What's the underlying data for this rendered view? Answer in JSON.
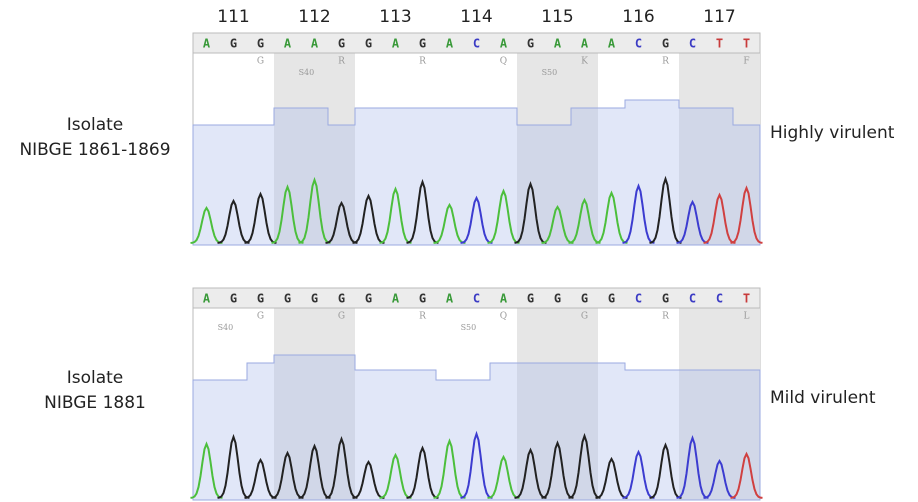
{
  "codon_numbers": [
    "111",
    "112",
    "113",
    "114",
    "115",
    "116",
    "117"
  ],
  "panels": [
    {
      "isolate_label": [
        "Isolate",
        "NIBGE 1861-1869"
      ],
      "virulence": "Highly virulent",
      "bases": [
        "A",
        "G",
        "G",
        "A",
        "A",
        "G",
        "G",
        "A",
        "G",
        "A",
        "C",
        "A",
        "G",
        "A",
        "A",
        "A",
        "C",
        "G",
        "C",
        "T",
        "T"
      ],
      "codons": [
        {
          "aa": "G"
        },
        {
          "aa": "R",
          "site": "S40"
        },
        {
          "aa": "R"
        },
        {
          "aa": "Q"
        },
        {
          "aa": "K",
          "site": "S50"
        },
        {
          "aa": "R"
        },
        {
          "aa": "F"
        }
      ]
    },
    {
      "isolate_label": [
        "Isolate",
        "NIBGE 1881"
      ],
      "virulence": "Mild virulent",
      "bases": [
        "A",
        "G",
        "G",
        "G",
        "G",
        "G",
        "G",
        "A",
        "G",
        "A",
        "C",
        "A",
        "G",
        "G",
        "G",
        "G",
        "C",
        "G",
        "C",
        "C",
        "T"
      ],
      "codons": [
        {
          "aa": "G",
          "site": "S40"
        },
        {
          "aa": "G"
        },
        {
          "aa": "R"
        },
        {
          "aa": "Q",
          "site": "S50"
        },
        {
          "aa": "G"
        },
        {
          "aa": "R"
        },
        {
          "aa": "L"
        }
      ]
    }
  ]
}
